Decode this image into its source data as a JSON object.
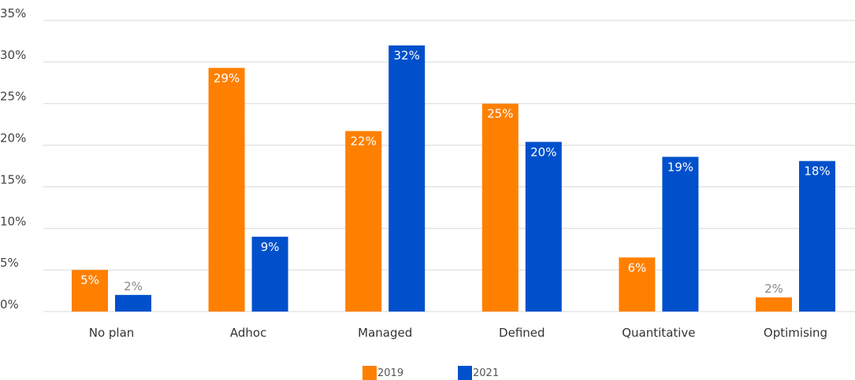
{
  "chart_data": {
    "type": "bar",
    "categories": [
      "No plan",
      "Adhoc",
      "Managed",
      "Defined",
      "Quantitative",
      "Optimising"
    ],
    "series": [
      {
        "name": "2019",
        "color": "#ff8000",
        "values": [
          5,
          29.3,
          21.7,
          25,
          6.5,
          1.7
        ],
        "labels": [
          "5%",
          "29%",
          "22%",
          "25%",
          "6%",
          "2%"
        ]
      },
      {
        "name": "2021",
        "color": "#0050cc",
        "values": [
          2,
          9,
          32,
          20.4,
          18.6,
          18.1
        ],
        "labels": [
          "2%",
          "9%",
          "32%",
          "20%",
          "19%",
          "18%"
        ]
      }
    ],
    "yticks": [
      "0%",
      "5%",
      "10%",
      "15%",
      "20%",
      "25%",
      "30%",
      "35%"
    ],
    "ylim": [
      0,
      35
    ],
    "grid": true,
    "legend_position": "bottom"
  }
}
